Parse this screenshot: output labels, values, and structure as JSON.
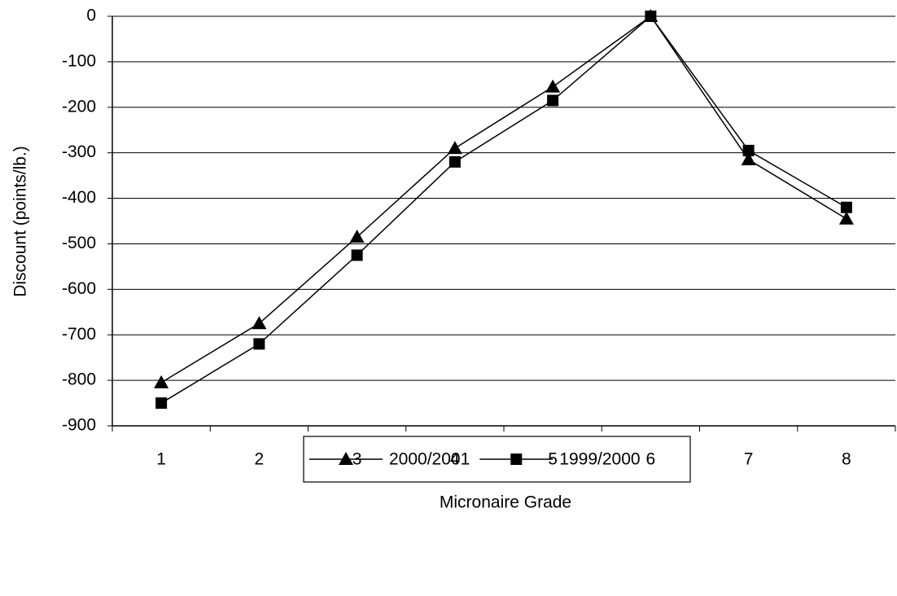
{
  "chart_data": {
    "type": "line",
    "x_label": "Micronaire Grade",
    "y_label": "Discount (points/lb.)",
    "categories": [
      "1",
      "2",
      "3",
      "4",
      "5",
      "6",
      "7",
      "8"
    ],
    "series": [
      {
        "name": "2000/2001",
        "color": "#000000",
        "marker": "triangle",
        "values": [
          -805,
          -675,
          -485,
          -290,
          -155,
          0,
          -315,
          -445
        ]
      },
      {
        "name": "1999/2000",
        "color": "#000000",
        "marker": "square",
        "values": [
          -850,
          -720,
          -525,
          -320,
          -185,
          0,
          -295,
          -420
        ]
      }
    ],
    "ylim": [
      -900,
      0
    ],
    "yticks": [
      0,
      -100,
      -200,
      -300,
      -400,
      -500,
      -600,
      -700,
      -800,
      -900
    ],
    "grid": true,
    "legend": "bottom"
  }
}
